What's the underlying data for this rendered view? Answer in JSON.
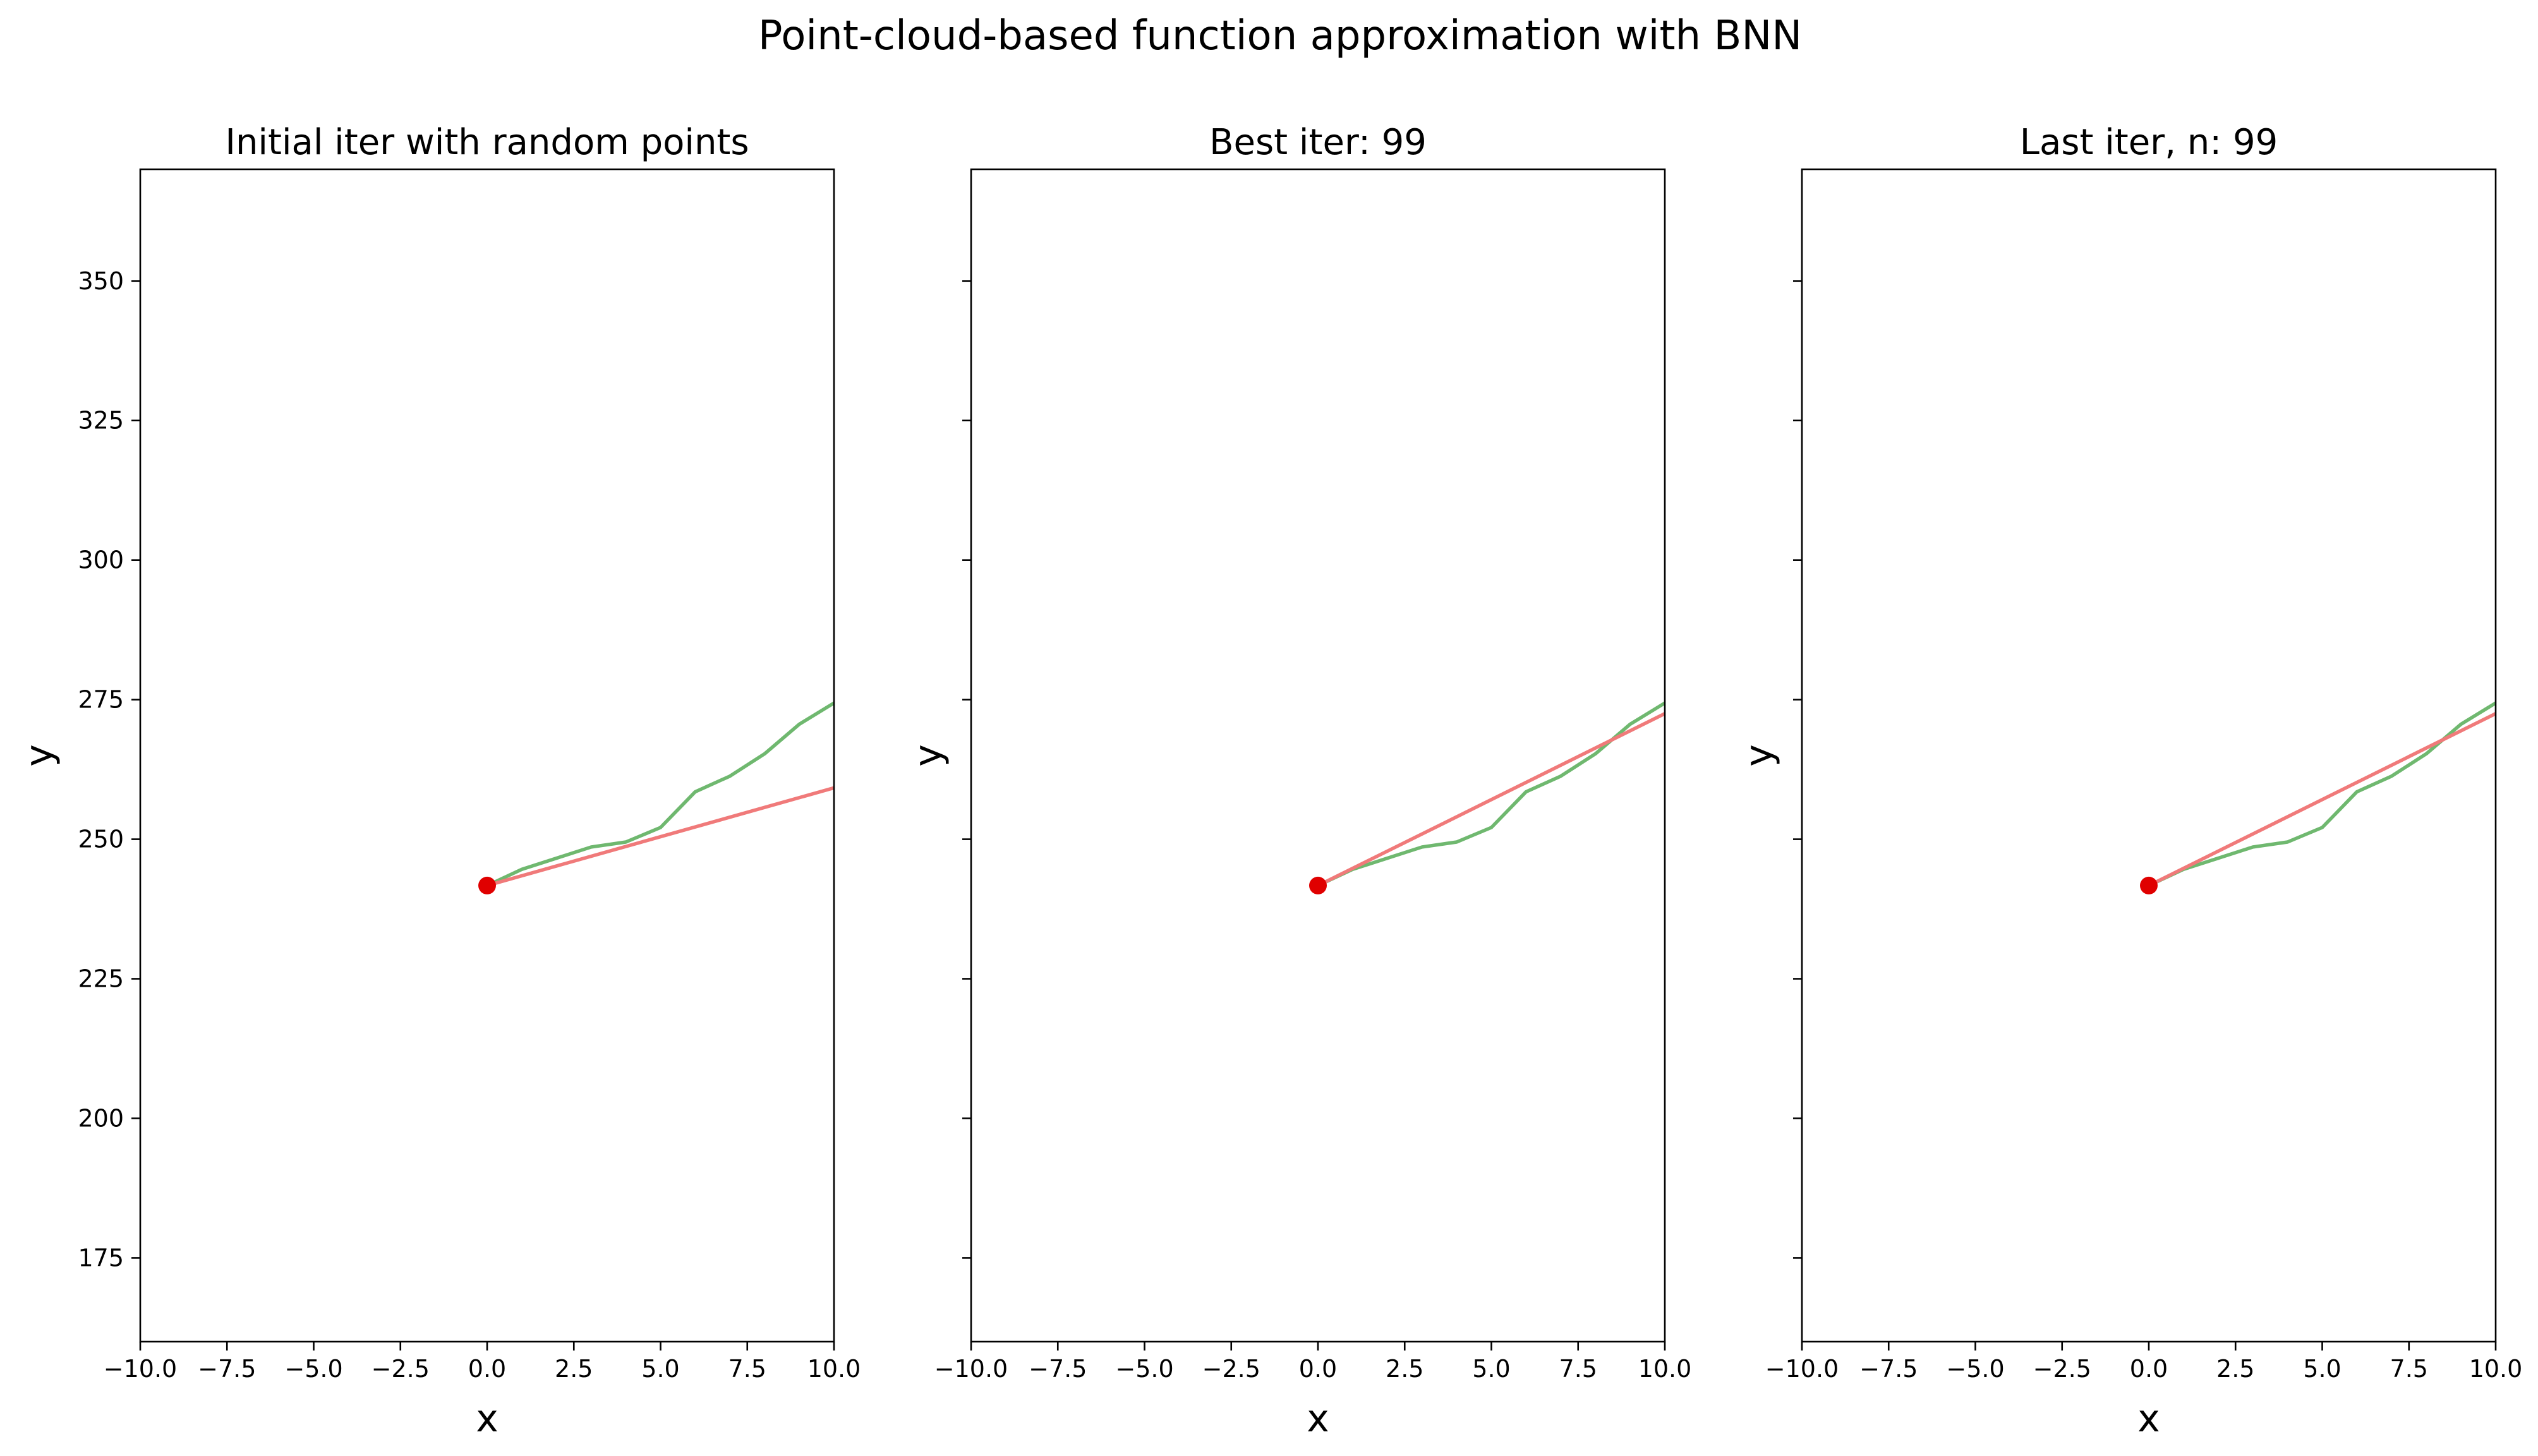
{
  "figure": {
    "suptitle": "Point-cloud-based function approximation with BNN"
  },
  "chart_data": [
    {
      "type": "line",
      "title": "Initial iter with random points",
      "xlabel": "x",
      "ylabel": "y",
      "xlim": [
        -10,
        10
      ],
      "ylim": [
        160,
        370
      ],
      "xticks": [
        "−10.0",
        "−7.5",
        "−5.0",
        "−2.5",
        "0.0",
        "2.5",
        "5.0",
        "7.5",
        "10.0"
      ],
      "yticks": [
        "175",
        "200",
        "225",
        "250",
        "275",
        "300",
        "325",
        "350"
      ],
      "show_ytick_labels": true,
      "grid": false,
      "series": [
        {
          "kind": "line",
          "color": "#6fb86f",
          "x": [
            0,
            1,
            2,
            3,
            4,
            5,
            6,
            7,
            8,
            9,
            10
          ],
          "y": [
            241.7,
            244.6,
            246.6,
            248.6,
            249.5,
            252.1,
            258.5,
            261.3,
            265.3,
            270.6,
            274.4
          ]
        },
        {
          "kind": "line",
          "color": "#f07a7a",
          "x": [
            0,
            10
          ],
          "y": [
            241.7,
            259.2
          ]
        },
        {
          "kind": "scatter",
          "color": "#e00000",
          "x": [
            0
          ],
          "y": [
            241.7
          ]
        }
      ]
    },
    {
      "type": "line",
      "title": "Best iter: 99",
      "xlabel": "x",
      "ylabel": "y",
      "xlim": [
        -10,
        10
      ],
      "ylim": [
        160,
        370
      ],
      "xticks": [
        "−10.0",
        "−7.5",
        "−5.0",
        "−2.5",
        "0.0",
        "2.5",
        "5.0",
        "7.5",
        "10.0"
      ],
      "yticks": [
        "175",
        "200",
        "225",
        "250",
        "275",
        "300",
        "325",
        "350"
      ],
      "show_ytick_labels": false,
      "grid": false,
      "series": [
        {
          "kind": "line",
          "color": "#6fb86f",
          "x": [
            0,
            1,
            2,
            3,
            4,
            5,
            6,
            7,
            8,
            9,
            10
          ],
          "y": [
            241.7,
            244.6,
            246.6,
            248.6,
            249.5,
            252.1,
            258.5,
            261.3,
            265.3,
            270.6,
            274.4
          ]
        },
        {
          "kind": "line",
          "color": "#f07a7a",
          "x": [
            0,
            10
          ],
          "y": [
            241.7,
            272.5
          ]
        },
        {
          "kind": "scatter",
          "color": "#e00000",
          "x": [
            0
          ],
          "y": [
            241.7
          ]
        }
      ]
    },
    {
      "type": "line",
      "title": "Last iter, n: 99",
      "xlabel": "x",
      "ylabel": "y",
      "xlim": [
        -10,
        10
      ],
      "ylim": [
        160,
        370
      ],
      "xticks": [
        "−10.0",
        "−7.5",
        "−5.0",
        "−2.5",
        "0.0",
        "2.5",
        "5.0",
        "7.5",
        "10.0"
      ],
      "yticks": [
        "175",
        "200",
        "225",
        "250",
        "275",
        "300",
        "325",
        "350"
      ],
      "show_ytick_labels": false,
      "grid": false,
      "series": [
        {
          "kind": "line",
          "color": "#6fb86f",
          "x": [
            0,
            1,
            2,
            3,
            4,
            5,
            6,
            7,
            8,
            9,
            10
          ],
          "y": [
            241.7,
            244.6,
            246.6,
            248.6,
            249.5,
            252.1,
            258.5,
            261.3,
            265.3,
            270.6,
            274.4
          ]
        },
        {
          "kind": "line",
          "color": "#f07a7a",
          "x": [
            0,
            10
          ],
          "y": [
            241.7,
            272.5
          ]
        },
        {
          "kind": "scatter",
          "color": "#e00000",
          "x": [
            0
          ],
          "y": [
            241.7
          ]
        }
      ]
    }
  ]
}
